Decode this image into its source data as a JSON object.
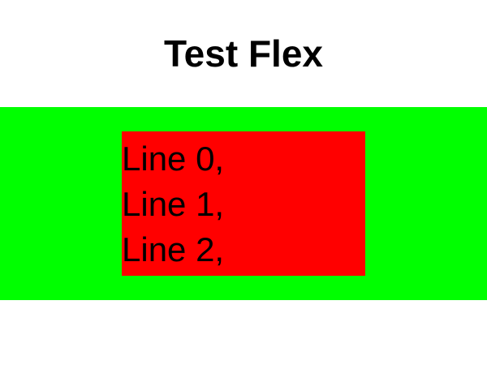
{
  "page": {
    "title": "Test Flex"
  },
  "container": {
    "background_color": "#00ff00"
  },
  "item": {
    "background_color": "#ff0000",
    "lines": [
      "Line 0,",
      "Line 1,",
      "Line 2,"
    ]
  }
}
